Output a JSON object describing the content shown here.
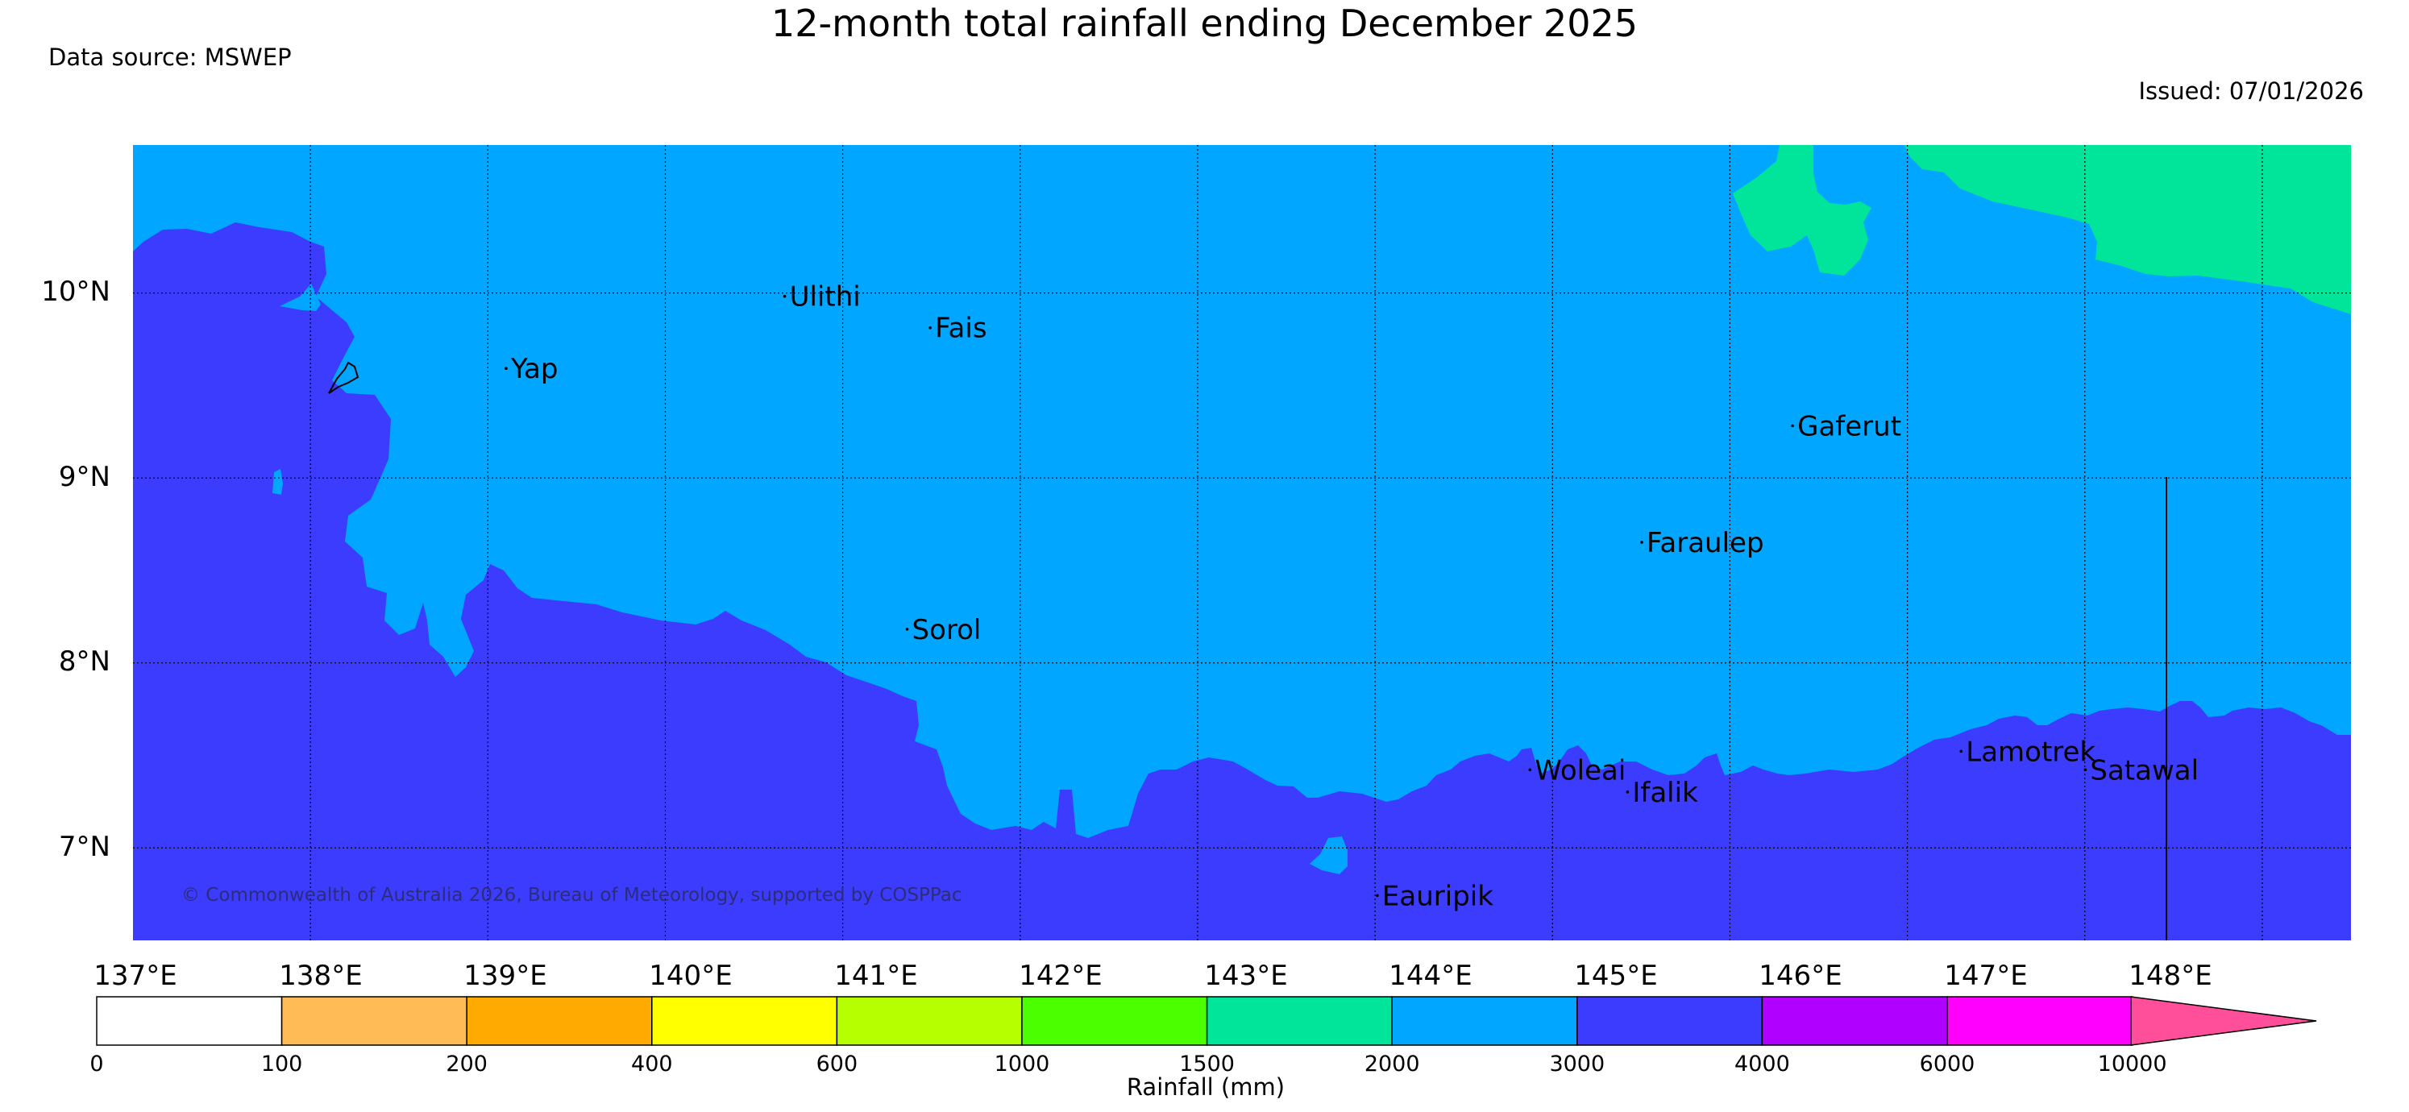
{
  "title": "12-month total rainfall ending December 2025",
  "data_source": "Data source: MSWEP",
  "issued": "Issued: 07/01/2026",
  "copyright": "© Commonwealth of Australia 2026, Bureau of Meteorology, supported by COSPPac",
  "map": {
    "lon_range": [
      136,
      148.5
    ],
    "lat_range": [
      6.5,
      10.8
    ],
    "lat_labels": [
      "7°N",
      "8°N",
      "9°N",
      "10°N"
    ],
    "lon_labels": [
      "137°E",
      "138°E",
      "139°E",
      "140°E",
      "141°E",
      "142°E",
      "143°E",
      "144°E",
      "145°E",
      "146°E",
      "147°E",
      "148°E"
    ],
    "places": [
      {
        "name": "Ulithi",
        "lon": 139.7,
        "lat": 9.93
      },
      {
        "name": "Fais",
        "lon": 140.52,
        "lat": 9.76
      },
      {
        "name": "Yap",
        "lon": 138.13,
        "lat": 9.54
      },
      {
        "name": "Gaferut",
        "lon": 145.38,
        "lat": 9.23
      },
      {
        "name": "Faraulep",
        "lon": 144.53,
        "lat": 8.6
      },
      {
        "name": "Sorol",
        "lon": 140.39,
        "lat": 8.13
      },
      {
        "name": "Woleai",
        "lon": 143.9,
        "lat": 7.37
      },
      {
        "name": "Ifalik",
        "lon": 144.45,
        "lat": 7.25
      },
      {
        "name": "Lamotrek",
        "lon": 146.33,
        "lat": 7.47
      },
      {
        "name": "Satawal",
        "lon": 147.03,
        "lat": 7.37
      },
      {
        "name": "Eauripik",
        "lon": 143.04,
        "lat": 6.69
      }
    ],
    "colors": {
      "band_2000_3000": "#00a6ff",
      "band_3000_4000": "#3c3cff",
      "band_1500_2000": "#00e59a"
    }
  },
  "colorbar": {
    "title": "Rainfall (mm)",
    "ticks": [
      "0",
      "100",
      "200",
      "400",
      "600",
      "1000",
      "1500",
      "2000",
      "3000",
      "4000",
      "6000",
      "10000"
    ],
    "colors": [
      "#ffffff",
      "#ffbb55",
      "#ffaa00",
      "#ffff00",
      "#b5ff00",
      "#4bff00",
      "#00e59a",
      "#00a6ff",
      "#3c3cff",
      "#b000ff",
      "#ff00ff",
      "#ff4e9a"
    ]
  }
}
